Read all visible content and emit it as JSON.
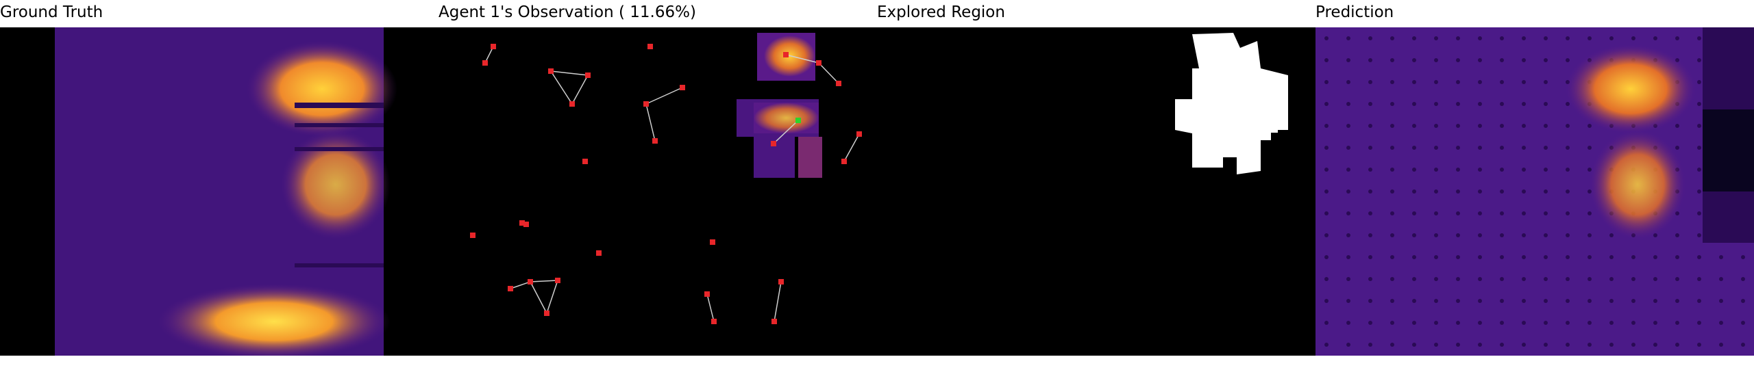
{
  "titles": {
    "ground_truth": "Ground Truth",
    "observation": "Agent 1's Observation ( 11.66%)",
    "explored": "Explored Region",
    "prediction": "Prediction"
  },
  "colors": {
    "background": "#000000",
    "thermal_low": "#3a0f6e",
    "thermal_mid": "#c23a6a",
    "thermal_high": "#ffd13a",
    "agent_marker": "#e8262a",
    "active_agent_marker": "#2bd52b",
    "explored_mask": "#ffffff",
    "link_line": "#cfcfcf"
  }
}
